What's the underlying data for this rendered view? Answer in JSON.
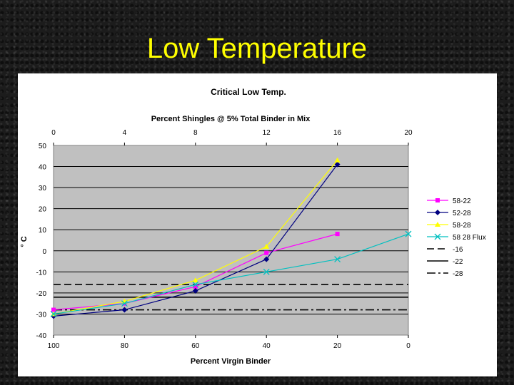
{
  "slide": {
    "title": "Low Temperature"
  },
  "chart_data": {
    "type": "line",
    "title": "Critical Low Temp.",
    "top_axis_label": "Percent Shingles @ 5% Total Binder in Mix",
    "xlabel": "Percent Virgin Binder",
    "ylabel": "° C",
    "x_ticks": [
      "100",
      "80",
      "60",
      "40",
      "20",
      "0"
    ],
    "top_ticks": [
      "0",
      "4",
      "8",
      "12",
      "16",
      "20"
    ],
    "y_ticks": [
      "50",
      "40",
      "30",
      "20",
      "10",
      "0",
      "-10",
      "-20",
      "-30",
      "-40"
    ],
    "ylim": [
      -40,
      50
    ],
    "xlim": [
      100,
      0
    ],
    "series": [
      {
        "name": "58-22",
        "color": "#ff00ff",
        "marker": "square",
        "x": [
          100,
          80,
          60,
          40,
          20
        ],
        "values": [
          -28,
          -25,
          -17,
          -1,
          8
        ]
      },
      {
        "name": "52-28",
        "color": "#000080",
        "marker": "diamond",
        "x": [
          100,
          80,
          60,
          40,
          20
        ],
        "values": [
          -31,
          -28,
          -19,
          -4,
          41
        ]
      },
      {
        "name": "58-28",
        "color": "#ffff00",
        "marker": "triangle",
        "x": [
          100,
          80,
          60,
          40,
          20
        ],
        "values": [
          -30,
          -24,
          -14,
          2,
          43
        ]
      },
      {
        "name": "58 28 Flux",
        "color": "#00c0c0",
        "marker": "x",
        "x": [
          100,
          80,
          60,
          40,
          20,
          0
        ],
        "values": [
          -30,
          -25,
          -16,
          -10,
          -4,
          8
        ]
      }
    ],
    "reference_lines": [
      {
        "name": "-16",
        "value": -16,
        "style": "dashed"
      },
      {
        "name": "-22",
        "value": -22,
        "style": "solid"
      },
      {
        "name": "-28",
        "value": -28,
        "style": "dashdot"
      }
    ]
  }
}
